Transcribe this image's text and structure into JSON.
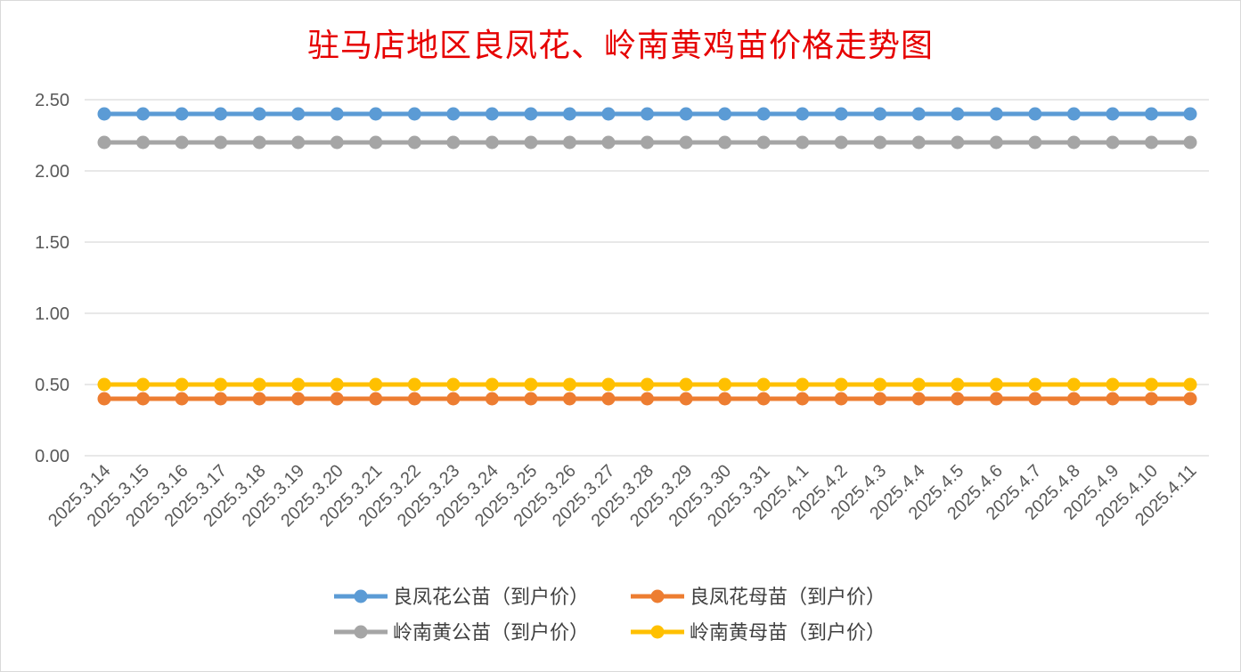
{
  "chart_data": {
    "type": "line",
    "title": "驻马店地区良凤花、岭南黄鸡苗价格走势图",
    "xlabel": "",
    "ylabel": "",
    "ylim": [
      0,
      2.5
    ],
    "yticks": [
      "0.00",
      "0.50",
      "1.00",
      "1.50",
      "2.00",
      "2.50"
    ],
    "grid": true,
    "legend_position": "bottom",
    "categories": [
      "2025.3.14",
      "2025.3.15",
      "2025.3.16",
      "2025.3.17",
      "2025.3.18",
      "2025.3.19",
      "2025.3.20",
      "2025.3.21",
      "2025.3.22",
      "2025.3.23",
      "2025.3.24",
      "2025.3.25",
      "2025.3.26",
      "2025.3.27",
      "2025.3.28",
      "2025.3.29",
      "2025.3.30",
      "2025.3.31",
      "2025.4.1",
      "2025.4.2",
      "2025.4.3",
      "2025.4.4",
      "2025.4.5",
      "2025.4.6",
      "2025.4.7",
      "2025.4.8",
      "2025.4.9",
      "2025.4.10",
      "2025.4.11"
    ],
    "series": [
      {
        "name": "良凤花公苗（到户价）",
        "color": "#5b9bd5",
        "values": [
          2.4,
          2.4,
          2.4,
          2.4,
          2.4,
          2.4,
          2.4,
          2.4,
          2.4,
          2.4,
          2.4,
          2.4,
          2.4,
          2.4,
          2.4,
          2.4,
          2.4,
          2.4,
          2.4,
          2.4,
          2.4,
          2.4,
          2.4,
          2.4,
          2.4,
          2.4,
          2.4,
          2.4,
          2.4
        ]
      },
      {
        "name": "良凤花母苗（到户价）",
        "color": "#ed7d31",
        "values": [
          0.4,
          0.4,
          0.4,
          0.4,
          0.4,
          0.4,
          0.4,
          0.4,
          0.4,
          0.4,
          0.4,
          0.4,
          0.4,
          0.4,
          0.4,
          0.4,
          0.4,
          0.4,
          0.4,
          0.4,
          0.4,
          0.4,
          0.4,
          0.4,
          0.4,
          0.4,
          0.4,
          0.4,
          0.4
        ]
      },
      {
        "name": "岭南黄公苗（到户价）",
        "color": "#a5a5a5",
        "values": [
          2.2,
          2.2,
          2.2,
          2.2,
          2.2,
          2.2,
          2.2,
          2.2,
          2.2,
          2.2,
          2.2,
          2.2,
          2.2,
          2.2,
          2.2,
          2.2,
          2.2,
          2.2,
          2.2,
          2.2,
          2.2,
          2.2,
          2.2,
          2.2,
          2.2,
          2.2,
          2.2,
          2.2,
          2.2
        ]
      },
      {
        "name": "岭南黄母苗（到户价）",
        "color": "#ffc000",
        "values": [
          0.5,
          0.5,
          0.5,
          0.5,
          0.5,
          0.5,
          0.5,
          0.5,
          0.5,
          0.5,
          0.5,
          0.5,
          0.5,
          0.5,
          0.5,
          0.5,
          0.5,
          0.5,
          0.5,
          0.5,
          0.5,
          0.5,
          0.5,
          0.5,
          0.5,
          0.5,
          0.5,
          0.5,
          0.5
        ]
      }
    ],
    "draw_order": [
      1,
      3,
      2,
      0
    ]
  }
}
